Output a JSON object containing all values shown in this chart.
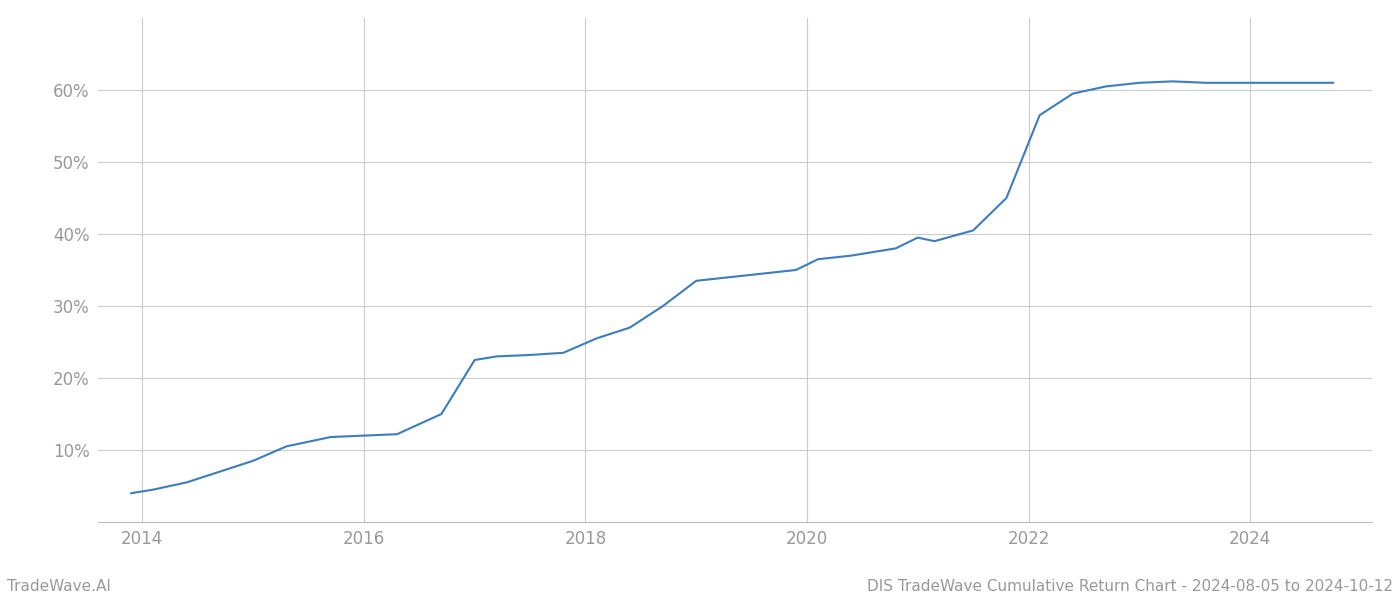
{
  "title": "DIS TradeWave Cumulative Return Chart - 2024-08-05 to 2024-10-12",
  "watermark": "TradeWave.AI",
  "line_color": "#3a7ebf",
  "line_width": 1.5,
  "background_color": "#ffffff",
  "grid_color": "#cccccc",
  "x_years": [
    2013.9,
    2014.1,
    2014.4,
    2014.7,
    2015.0,
    2015.3,
    2015.7,
    2016.0,
    2016.3,
    2016.7,
    2017.0,
    2017.2,
    2017.5,
    2017.8,
    2018.1,
    2018.4,
    2018.7,
    2019.0,
    2019.3,
    2019.6,
    2019.9,
    2020.1,
    2020.4,
    2020.6,
    2020.8,
    2021.0,
    2021.15,
    2021.5,
    2021.8,
    2022.1,
    2022.4,
    2022.7,
    2023.0,
    2023.3,
    2023.6,
    2023.9,
    2024.0,
    2024.75
  ],
  "y_values": [
    4.0,
    4.5,
    5.5,
    7.0,
    8.5,
    10.5,
    11.8,
    12.0,
    12.2,
    15.0,
    22.5,
    23.0,
    23.2,
    23.5,
    25.5,
    27.0,
    30.0,
    33.5,
    34.0,
    34.5,
    35.0,
    36.5,
    37.0,
    37.5,
    38.0,
    39.5,
    39.0,
    40.5,
    45.0,
    56.5,
    59.5,
    60.5,
    61.0,
    61.2,
    61.0,
    61.0,
    61.0,
    61.0
  ],
  "xlim": [
    2013.6,
    2025.1
  ],
  "ylim": [
    0,
    70
  ],
  "yticks": [
    10,
    20,
    30,
    40,
    50,
    60
  ],
  "ytick_labels": [
    "10%",
    "20%",
    "30%",
    "40%",
    "50%",
    "60%"
  ],
  "xticks": [
    2014,
    2016,
    2018,
    2020,
    2022,
    2024
  ],
  "tick_color": "#999999",
  "label_fontsize": 12,
  "watermark_fontsize": 11,
  "title_fontsize": 11
}
